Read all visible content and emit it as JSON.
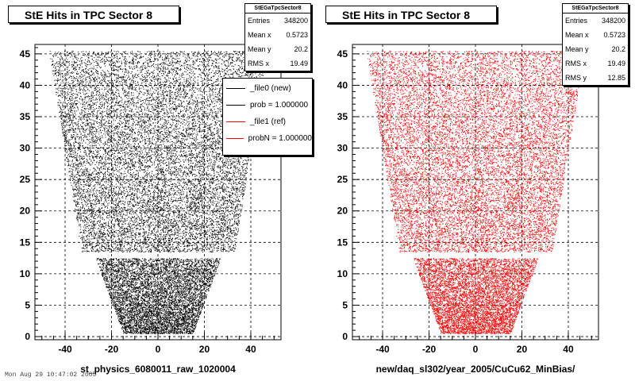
{
  "left_pad": {
    "title": "StE Hits in TPC Sector 8",
    "xlabel": "st_physics_6080011_raw_1020004",
    "stats": {
      "header": "StEGaTpcSector8",
      "rows": [
        {
          "k": "Entries",
          "v": "348200"
        },
        {
          "k": "Mean x",
          "v": "0.5723"
        },
        {
          "k": "Mean y",
          "v": "20.2"
        },
        {
          "k": "RMS x",
          "v": "19.49"
        }
      ]
    },
    "legend": [
      {
        "label": "_file0 (new)",
        "color": "#000000"
      },
      {
        "label": "prob = 1.000000",
        "color": "#000000"
      },
      {
        "label": "_file1 (ref)",
        "color": "#ff0000"
      },
      {
        "label": "probN = 1.000000",
        "color": "#ff0000"
      }
    ]
  },
  "right_pad": {
    "title": "StE Hits in TPC Sector 8",
    "xlabel": "new/daq_sl302/year_2005/CuCu62_MinBias/",
    "stats": {
      "header": "StEGaTpcSector8",
      "rows": [
        {
          "k": "Entries",
          "v": "348200"
        },
        {
          "k": "Mean x",
          "v": "0.5723"
        },
        {
          "k": "Mean y",
          "v": "20.2"
        },
        {
          "k": "RMS x",
          "v": "19.49"
        },
        {
          "k": "RMS y",
          "v": "12.85"
        }
      ]
    }
  },
  "footer_text": "Mon Aug 29 10:47:02 2005",
  "chart_data": [
    {
      "type": "scatter",
      "title": "StE Hits in TPC Sector 8",
      "xlabel": "st_physics_6080011_raw_1020004",
      "xlim": [
        -53,
        53
      ],
      "ylim": [
        -0.5,
        46.5
      ],
      "xticks": [
        -40,
        -20,
        0,
        20,
        40
      ],
      "yticks": [
        0,
        5,
        10,
        15,
        20,
        25,
        30,
        35,
        40,
        45
      ],
      "grid": true,
      "color": "#000000",
      "description_of_density": "dense uniform hits filling TPC sector trapezoid; outer region y 13.5-45.5, inner region y 0.5-12.5",
      "outer_sector": {
        "y": [
          13.5,
          45.5
        ],
        "half_width_at_y_min": 33,
        "half_width_at_y_max": 47
      },
      "inner_sector": {
        "y": [
          0.5,
          12.5
        ],
        "half_width_at_y_min": 15,
        "half_width_at_y_max": 27
      }
    },
    {
      "type": "scatter",
      "title": "StE Hits in TPC Sector 8",
      "xlabel": "new/daq_sl302/year_2005/CuCu62_MinBias/",
      "xlim": [
        -53,
        53
      ],
      "ylim": [
        -0.5,
        46.5
      ],
      "xticks": [
        -40,
        -20,
        0,
        20,
        40
      ],
      "yticks": [
        0,
        5,
        10,
        15,
        20,
        25,
        30,
        35,
        40,
        45
      ],
      "grid": true,
      "color": "#ff0000",
      "outer_sector": {
        "y": [
          13.5,
          45.5
        ],
        "half_width_at_y_min": 33,
        "half_width_at_y_max": 47
      },
      "inner_sector": {
        "y": [
          0.5,
          12.5
        ],
        "half_width_at_y_min": 15,
        "half_width_at_y_max": 27
      }
    }
  ]
}
